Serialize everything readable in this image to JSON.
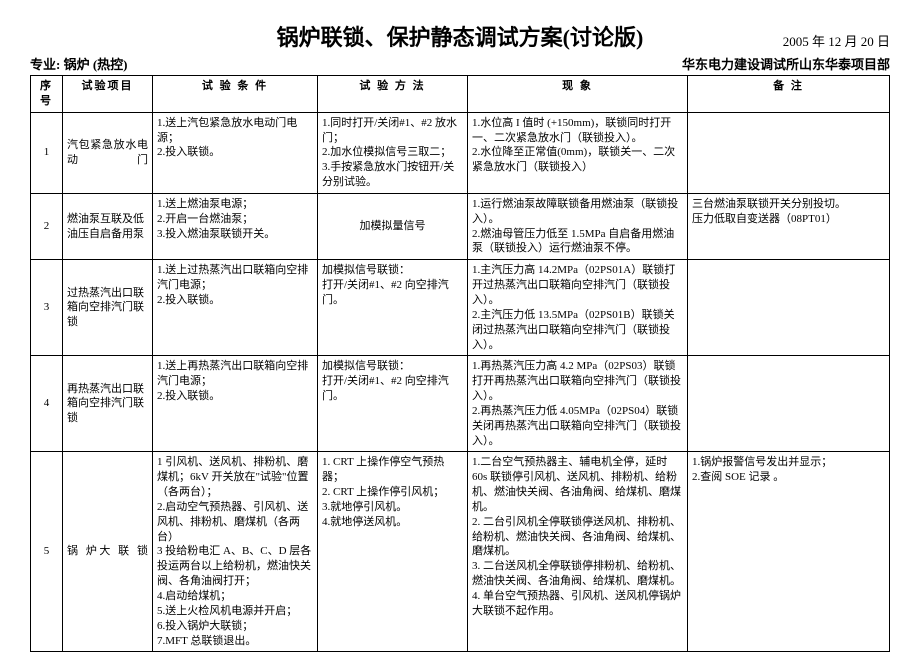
{
  "title": "锅炉联锁、保护静态调试方案(讨论版)",
  "date": "2005 年 12 月 20 日",
  "left_label": "专业:",
  "left_value": "锅炉 (热控)",
  "right_org": "华东电力建设调试所山东华泰项目部",
  "headers": {
    "seq": "序号",
    "item": "试验项目",
    "cond": "试 验 条 件",
    "method": "试 验 方 法",
    "phen": "现 象",
    "note": "备 注"
  },
  "rows": [
    {
      "seq": "1",
      "item": "汽包紧急放水电 动 门",
      "cond": "1.送上汽包紧急放水电动门电源；\n2.投入联锁。",
      "method": "1.同时打开/关闭#1、#2 放水门；\n2.加水位模拟信号三取二；\n3.手按紧急放水门按钮开/关分别试验。",
      "phen": "1.水位高 I 值时 (+150mm)，联锁同时打开一、二次紧急放水门（联锁投入）。\n2.水位降至正常值(0mm)，联锁关一、二次紧急放水门（联锁投入）",
      "note": ""
    },
    {
      "seq": "2",
      "item": "燃油泵互联及低油压自启备用泵",
      "cond": "1.送上燃油泵电源；\n2.开启一台燃油泵；\n3.投入燃油泵联锁开关。",
      "method": "加模拟量信号",
      "phen": "1.运行燃油泵故障联锁备用燃油泵（联锁投入）。\n2.燃油母管压力低至 1.5MPa 自启备用燃油泵（联锁投入）运行燃油泵不停。",
      "note": "三台燃油泵联锁开关分别投切。\n压力低取自变送器（08PT01）"
    },
    {
      "seq": "3",
      "item": "过热蒸汽出口联箱向空排汽门联锁",
      "cond": "1.送上过热蒸汽出口联箱向空排汽门电源；\n2.投入联锁。",
      "method": "加模拟信号联锁：\n打开/关闭#1、#2 向空排汽门。",
      "phen": "1.主汽压力高 14.2MPa（02PS01A）联锁打开过热蒸汽出口联箱向空排汽门（联锁投入）。\n2.主汽压力低 13.5MPa（02PS01B）联锁关闭过热蒸汽出口联箱向空排汽门（联锁投入）。",
      "note": ""
    },
    {
      "seq": "4",
      "item": "再热蒸汽出口联箱向空排汽门联锁",
      "cond": "1.送上再热蒸汽出口联箱向空排汽门电源；\n2.投入联锁。",
      "method": "加模拟信号联锁：\n打开/关闭#1、#2 向空排汽门。",
      "phen": "1.再热蒸汽压力高 4.2 MPa（02PS03）联锁打开再热蒸汽出口联箱向空排汽门（联锁投入）。\n2.再热蒸汽压力低 4.05MPa（02PS04）联锁关闭再热蒸汽出口联箱向空排汽门（联锁投入）。",
      "note": ""
    },
    {
      "seq": "5",
      "item": "锅 炉大 联 锁",
      "cond": "1 引风机、送风机、排粉机、磨煤机；6kV 开关放在\"试验\"位置（各两台）；\n2.启动空气预热器、引风机、送风机、排粉机、磨煤机（各两台）\n3 投给粉电汇 A、B、C、D 层各投运两台以上给粉机，燃油快关阀、各角油阀打开；\n4.启动给煤机；\n5.送上火检风机电源并开启；\n6.投入锅炉大联锁；\n7.MFT 总联锁退出。",
      "method": "1. CRT 上操作停空气预热器；\n2. CRT 上操作停引风机；\n3.就地停引风机。\n4.就地停送风机。",
      "phen": "1.二台空气预热器主、辅电机全停，延时 60s 联锁停引风机、送风机、排粉机、给粉机、燃油快关阀、各油角阀、给煤机、磨煤机。\n2. 二台引风机全停联锁停送风机、排粉机、给粉机、燃油快关阀、各油角阀、给煤机、磨煤机。\n3. 二台送风机全停联锁停排粉机、给粉机、燃油快关阀、各油角阀、给煤机、磨煤机。\n4. 单台空气预热器、引风机、送风机停锅炉大联锁不起作用。",
      "note": "1.锅炉报警信号发出并显示；\n2.查阅 SOE 记录 。"
    }
  ]
}
